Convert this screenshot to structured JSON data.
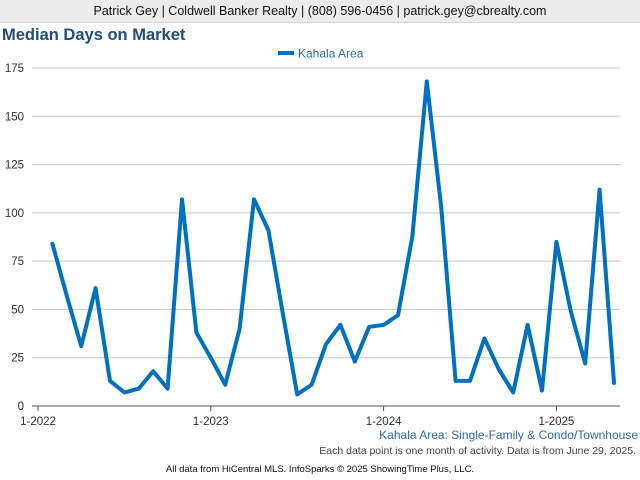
{
  "header": {
    "contact": "Patrick Gey | Coldwell Banker Realty | (808) 596-0456 | patrick.gey@cbrealty.com"
  },
  "chart_data": {
    "type": "line",
    "title": "Median Days on Market",
    "xlabel": "",
    "ylabel": "",
    "ylim": [
      0,
      175
    ],
    "yticks": [
      0,
      25,
      50,
      75,
      100,
      125,
      150,
      175
    ],
    "grid": true,
    "legend_position": "top-center",
    "x_tick_labels": [
      "1-2022",
      "1-2023",
      "1-2024",
      "1-2025"
    ],
    "x": [
      "2022-02",
      "2022-03",
      "2022-04",
      "2022-05",
      "2022-06",
      "2022-07",
      "2022-08",
      "2022-09",
      "2022-10",
      "2022-11",
      "2022-12",
      "2023-01",
      "2023-02",
      "2023-03",
      "2023-04",
      "2023-05",
      "2023-06",
      "2023-07",
      "2023-08",
      "2023-09",
      "2023-10",
      "2023-11",
      "2023-12",
      "2024-01",
      "2024-02",
      "2024-03",
      "2024-04",
      "2024-05",
      "2024-06",
      "2024-07",
      "2024-08",
      "2024-09",
      "2024-10",
      "2024-11",
      "2024-12",
      "2025-01",
      "2025-02",
      "2025-03",
      "2025-04",
      "2025-05"
    ],
    "series": [
      {
        "name": "Kahala Area",
        "color": "#0070c0",
        "values": [
          84,
          57,
          31,
          61,
          13,
          7,
          9,
          18,
          9,
          107,
          38,
          25,
          11,
          40,
          107,
          91,
          48,
          6,
          11,
          32,
          42,
          23,
          41,
          42,
          47,
          88,
          168,
          103,
          13,
          13,
          35,
          19,
          7,
          42,
          8,
          85,
          49,
          22,
          112,
          12
        ]
      }
    ]
  },
  "footer": {
    "subtitle": "Kahala Area: Single-Family & Condo/Townhouse",
    "note": "Each data point is one month of activity. Data is from June 29, 2025.",
    "credit": "All data from HiCentral MLS. InfoSparks © 2025 ShowingTime Plus, LLC."
  }
}
